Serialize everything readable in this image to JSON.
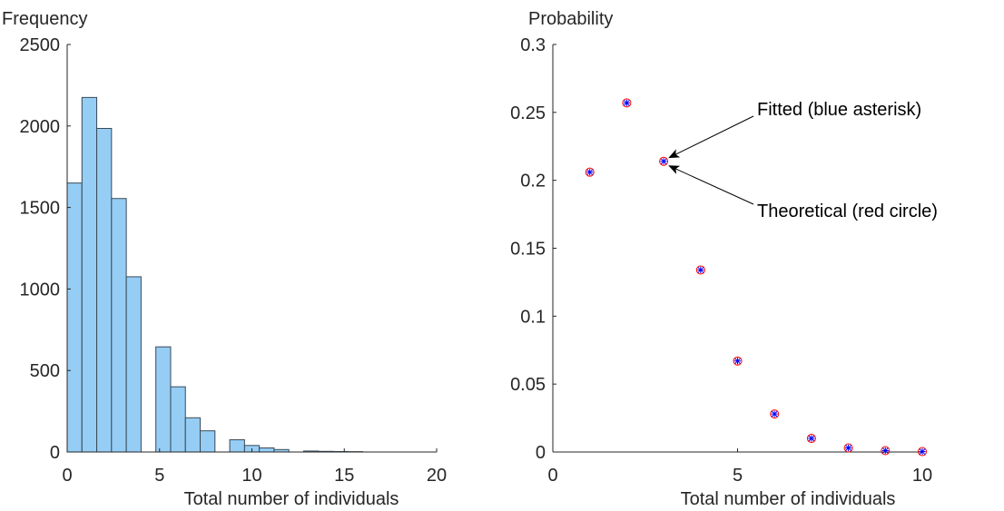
{
  "colors": {
    "bar_fill": "#95cdf5",
    "bar_edge": "#3a4a56",
    "axis": "#262626",
    "fitted_marker": "#0000ff",
    "theoretical_marker": "#ff0000",
    "arrow": "#000000"
  },
  "chart_data": [
    {
      "type": "bar",
      "ylabel": "Frequency",
      "xlabel": "Total number of individuals",
      "xlim": [
        0,
        20
      ],
      "ylim": [
        0,
        2500
      ],
      "xticks": [
        0,
        5,
        10,
        15,
        20
      ],
      "yticks": [
        0,
        500,
        1000,
        1500,
        2000,
        2500
      ],
      "xtick_labels": [
        "0",
        "5",
        "10",
        "15",
        "20"
      ],
      "ytick_labels": [
        "0",
        "500",
        "1000",
        "1500",
        "2000",
        "2500"
      ],
      "bin_width": 0.8,
      "bins": [
        {
          "start": 0.0,
          "value": 1650
        },
        {
          "start": 0.8,
          "value": 2175
        },
        {
          "start": 1.6,
          "value": 1985
        },
        {
          "start": 2.4,
          "value": 1555
        },
        {
          "start": 3.2,
          "value": 1075
        },
        {
          "start": 4.0,
          "value": 0
        },
        {
          "start": 4.8,
          "value": 645
        },
        {
          "start": 5.6,
          "value": 400
        },
        {
          "start": 6.4,
          "value": 210
        },
        {
          "start": 7.2,
          "value": 130
        },
        {
          "start": 8.0,
          "value": 0
        },
        {
          "start": 8.8,
          "value": 75
        },
        {
          "start": 9.6,
          "value": 40
        },
        {
          "start": 10.4,
          "value": 25
        },
        {
          "start": 11.2,
          "value": 15
        },
        {
          "start": 12.0,
          "value": 0
        },
        {
          "start": 12.8,
          "value": 6
        },
        {
          "start": 13.6,
          "value": 4
        },
        {
          "start": 14.4,
          "value": 3
        },
        {
          "start": 15.2,
          "value": 2
        }
      ]
    },
    {
      "type": "scatter",
      "ylabel": "Probability",
      "xlabel": "Total number of individuals",
      "xlim": [
        0,
        10
      ],
      "ylim": [
        0,
        0.3
      ],
      "xticks": [
        0,
        5,
        10
      ],
      "yticks": [
        0,
        0.05,
        0.1,
        0.15,
        0.2,
        0.25,
        0.3
      ],
      "xtick_labels": [
        "0",
        "5",
        "10"
      ],
      "ytick_labels": [
        "0",
        "0.05",
        "0.1",
        "0.15",
        "0.2",
        "0.25",
        "0.3"
      ],
      "x": [
        1,
        2,
        3,
        4,
        5,
        6,
        7,
        8,
        9,
        10
      ],
      "series": [
        {
          "marker": "asterisk",
          "color": "#0000ff",
          "values": [
            0.206,
            0.257,
            0.214,
            0.134,
            0.067,
            0.028,
            0.01,
            0.003,
            0.001,
            0.0003
          ]
        },
        {
          "marker": "circle",
          "color": "#ff0000",
          "values": [
            0.206,
            0.257,
            0.214,
            0.134,
            0.067,
            0.028,
            0.01,
            0.003,
            0.001,
            0.0003
          ]
        }
      ],
      "annotations": [
        {
          "text": "Fitted (blue asterisk)",
          "target_x": 3,
          "target_y": 0.214
        },
        {
          "text": "Theoretical (red circle)",
          "target_x": 3,
          "target_y": 0.214
        }
      ]
    }
  ]
}
